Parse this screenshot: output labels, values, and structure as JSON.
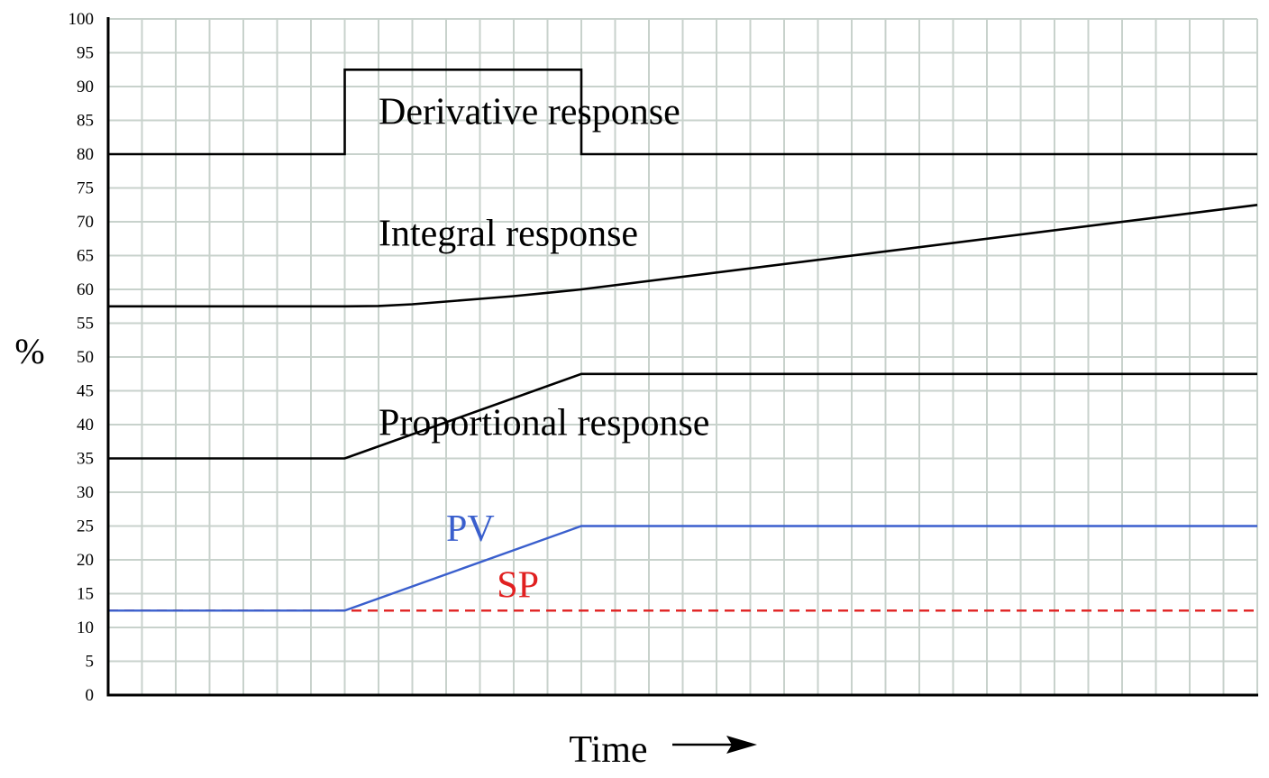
{
  "chart_data": {
    "type": "line",
    "title": "",
    "xlabel": "Time",
    "ylabel": "%",
    "xlim": [
      0,
      34
    ],
    "ylim": [
      0,
      100
    ],
    "yticks": [
      0,
      5,
      10,
      15,
      20,
      25,
      30,
      35,
      40,
      45,
      50,
      55,
      60,
      65,
      70,
      75,
      80,
      85,
      90,
      95,
      100
    ],
    "grid": true,
    "colors": {
      "grid": "#c8d2cc",
      "response": "#000000",
      "pv": "#3a5fcd",
      "sp": "#e02020"
    },
    "series": [
      {
        "key": "derivative",
        "name": "Derivative response",
        "color": "#000000",
        "dashed": false,
        "x": [
          0,
          7,
          7,
          14,
          14,
          34
        ],
        "y": [
          80,
          80,
          92.5,
          92.5,
          80,
          80
        ]
      },
      {
        "key": "integral",
        "name": "Integral response",
        "color": "#000000",
        "dashed": false,
        "x": [
          0,
          7,
          8,
          9,
          10,
          11,
          12,
          13,
          14,
          34
        ],
        "y": [
          57.5,
          57.5,
          57.55,
          57.8,
          58.2,
          58.6,
          59.0,
          59.5,
          60.0,
          72.5
        ]
      },
      {
        "key": "proportional",
        "name": "Proportional response",
        "color": "#000000",
        "dashed": false,
        "x": [
          0,
          7,
          14,
          34
        ],
        "y": [
          35,
          35,
          47.5,
          47.5
        ]
      },
      {
        "key": "sp",
        "name": "SP",
        "color": "#e02020",
        "dashed": true,
        "x": [
          0,
          34
        ],
        "y": [
          12.5,
          12.5
        ]
      },
      {
        "key": "pv",
        "name": "PV",
        "color": "#3a5fcd",
        "dashed": false,
        "x": [
          0,
          7,
          14,
          34
        ],
        "y": [
          12.5,
          12.5,
          25,
          25
        ]
      }
    ],
    "annotations": [
      {
        "key": "derivative",
        "text": "Derivative response",
        "color": "#000000",
        "x": 8,
        "y": 84.5
      },
      {
        "key": "integral",
        "text": "Integral response",
        "color": "#000000",
        "x": 8,
        "y": 66.5
      },
      {
        "key": "proportional",
        "text": "Proportional response",
        "color": "#000000",
        "x": 8,
        "y": 38.5
      },
      {
        "key": "pv",
        "text": "PV",
        "color": "#3a5fcd",
        "x": 10,
        "y": 22.8
      },
      {
        "key": "sp",
        "text": "SP",
        "color": "#e02020",
        "x": 11.5,
        "y": 14.5
      }
    ]
  }
}
